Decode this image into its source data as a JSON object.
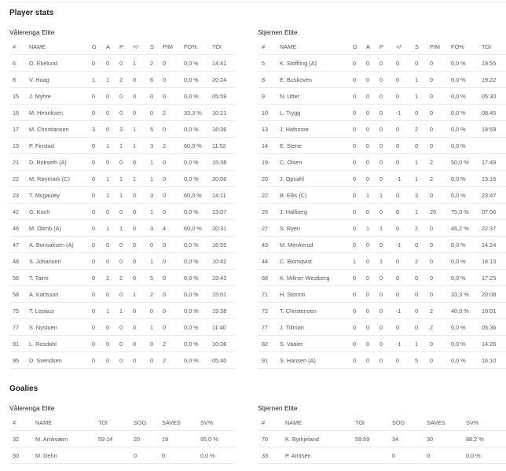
{
  "title": "Player stats",
  "goalies_title": "Goalies",
  "skater_headers": [
    "#",
    "NAME",
    "G",
    "A",
    "P",
    "+/-",
    "S",
    "PIM",
    "FO%",
    "TOI"
  ],
  "goalie_headers": [
    "#",
    "NAME",
    "TOI",
    "SOG",
    "SAVES",
    "SV%"
  ],
  "home": {
    "team": "Vålerenga Elite",
    "players": [
      [
        "6",
        "O. Ekelund",
        "0",
        "0",
        "0",
        "1",
        "2",
        "0",
        "0,0 %",
        "14:41"
      ],
      [
        "8",
        "V. Haag",
        "1",
        "1",
        "2",
        "0",
        "6",
        "0",
        "0,0 %",
        "20:24"
      ],
      [
        "15",
        "J. Myhre",
        "0",
        "0",
        "0",
        "0",
        "0",
        "0",
        "0,0 %",
        "05:59"
      ],
      [
        "16",
        "M. Henriksen",
        "0",
        "0",
        "0",
        "0",
        "0",
        "2",
        "33,3 %",
        "10:21"
      ],
      [
        "17",
        "M. Christiansen",
        "3",
        "0",
        "3",
        "1",
        "5",
        "0",
        "0,0 %",
        "16:36"
      ],
      [
        "19",
        "P. Finstad",
        "0",
        "1",
        "1",
        "1",
        "3",
        "2",
        "60,0 %",
        "11:52"
      ],
      [
        "21",
        "D. Rokseth (A)",
        "0",
        "0",
        "0",
        "0",
        "1",
        "0",
        "0,0 %",
        "15:38"
      ],
      [
        "22",
        "M. Røymark (C)",
        "0",
        "1",
        "1",
        "1",
        "1",
        "0",
        "0,0 %",
        "20:06"
      ],
      [
        "23",
        "T. Mcgauley",
        "0",
        "1",
        "1",
        "0",
        "3",
        "0",
        "60,0 %",
        "14:11"
      ],
      [
        "42",
        "G. Koch",
        "0",
        "0",
        "0",
        "0",
        "1",
        "0",
        "0,0 %",
        "13:07"
      ],
      [
        "46",
        "M. Olimb (A)",
        "0",
        "1",
        "1",
        "0",
        "3",
        "4",
        "60,0 %",
        "20:31"
      ],
      [
        "47",
        "A. Bonsaksen (A)",
        "0",
        "0",
        "0",
        "0",
        "0",
        "0",
        "0,0 %",
        "16:55"
      ],
      [
        "48",
        "S. Johansen",
        "0",
        "0",
        "0",
        "0",
        "1",
        "0",
        "0,0 %",
        "10:42"
      ],
      [
        "56",
        "T. Taimi",
        "0",
        "2",
        "2",
        "0",
        "5",
        "0",
        "0,0 %",
        "19:43"
      ],
      [
        "58",
        "A. Karlsson",
        "0",
        "0",
        "0",
        "1",
        "2",
        "0",
        "0,0 %",
        "15:01"
      ],
      [
        "75",
        "T. Lepaus",
        "0",
        "1",
        "1",
        "0",
        "0",
        "0",
        "0,0 %",
        "19:38"
      ],
      [
        "77",
        "S. Nystuen",
        "0",
        "0",
        "0",
        "0",
        "1",
        "0",
        "0,0 %",
        "11:40"
      ],
      [
        "91",
        "L. Rosdahl",
        "0",
        "0",
        "0",
        "0",
        "0",
        "2",
        "0,0 %",
        "10:36"
      ],
      [
        "95",
        "D. Svendsen",
        "0",
        "0",
        "0",
        "0",
        "0",
        "2",
        "0,0 %",
        "05:40"
      ]
    ],
    "goalies": [
      [
        "32",
        "M. Arnkværn",
        "59:14",
        "20",
        "19",
        "95,0 %"
      ],
      [
        "50",
        "M. Dehn",
        "",
        "0",
        "0",
        "0,0 %"
      ]
    ]
  },
  "away": {
    "team": "Stjernen Elite",
    "players": [
      [
        "5",
        "K. Stöffling (A)",
        "0",
        "0",
        "0",
        "0",
        "0",
        "0",
        "0,0 %",
        "19:55"
      ],
      [
        "8",
        "E. Buskoven",
        "0",
        "0",
        "0",
        "0",
        "1",
        "0",
        "0,0 %",
        "19:22"
      ],
      [
        "9",
        "N. Utter",
        "0",
        "0",
        "0",
        "0",
        "1",
        "0",
        "0,0 %",
        "05:30"
      ],
      [
        "10",
        "L. Trygg",
        "0",
        "0",
        "0",
        "-1",
        "0",
        "0",
        "0,0 %",
        "08:45"
      ],
      [
        "13",
        "J. Hafsmoe",
        "0",
        "0",
        "0",
        "0",
        "2",
        "0",
        "0,0 %",
        "18:59"
      ],
      [
        "14",
        "E. Stene",
        "0",
        "0",
        "0",
        "0",
        "0",
        "0",
        "0,0 %",
        ""
      ],
      [
        "19",
        "C. Olsen",
        "0",
        "0",
        "0",
        "0",
        "1",
        "2",
        "50,0 %",
        "17:49"
      ],
      [
        "20",
        "J. Opsahl",
        "0",
        "0",
        "0",
        "-1",
        "1",
        "2",
        "0,0 %",
        "13:16"
      ],
      [
        "22",
        "B. Ellis (C)",
        "0",
        "1",
        "1",
        "0",
        "3",
        "0",
        "0,0 %",
        "23:47"
      ],
      [
        "25",
        "J. Hallberg",
        "0",
        "0",
        "0",
        "0",
        "1",
        "25",
        "75,0 %",
        "07:56"
      ],
      [
        "27",
        "S. Ryen",
        "0",
        "1",
        "1",
        "0",
        "2",
        "0",
        "46,2 %",
        "22:37"
      ],
      [
        "43",
        "M. Menkerud",
        "0",
        "0",
        "0",
        "-1",
        "0",
        "0",
        "0,0 %",
        "14:24"
      ],
      [
        "44",
        "C. Blomqvist",
        "1",
        "0",
        "1",
        "0",
        "2",
        "0",
        "0,0 %",
        "18:13"
      ],
      [
        "68",
        "K. Millner Westberg",
        "0",
        "0",
        "0",
        "0",
        "0",
        "0",
        "0,0 %",
        "17:25"
      ],
      [
        "71",
        "H. Stormli",
        "0",
        "0",
        "0",
        "0",
        "0",
        "0",
        "33,3 %",
        "20:08"
      ],
      [
        "72",
        "T. Christensen",
        "0",
        "0",
        "0",
        "-1",
        "0",
        "2",
        "40,0 %",
        "10:01"
      ],
      [
        "77",
        "J. Tillman",
        "0",
        "0",
        "0",
        "0",
        "0",
        "2",
        "0,0 %",
        "05:36"
      ],
      [
        "82",
        "S. Vaaler",
        "0",
        "0",
        "0",
        "-1",
        "1",
        "0",
        "0,0 %",
        "14:26"
      ],
      [
        "91",
        "S. Hansen (A)",
        "0",
        "0",
        "0",
        "0",
        "5",
        "0",
        "0,0 %",
        "16:10"
      ]
    ],
    "goalies": [
      [
        "70",
        "K. Byrkjeland",
        "59:59",
        "34",
        "30",
        "88,2 %"
      ],
      [
        "33",
        "P. Arntsen",
        "",
        "0",
        "0",
        "0,0 %"
      ]
    ]
  }
}
